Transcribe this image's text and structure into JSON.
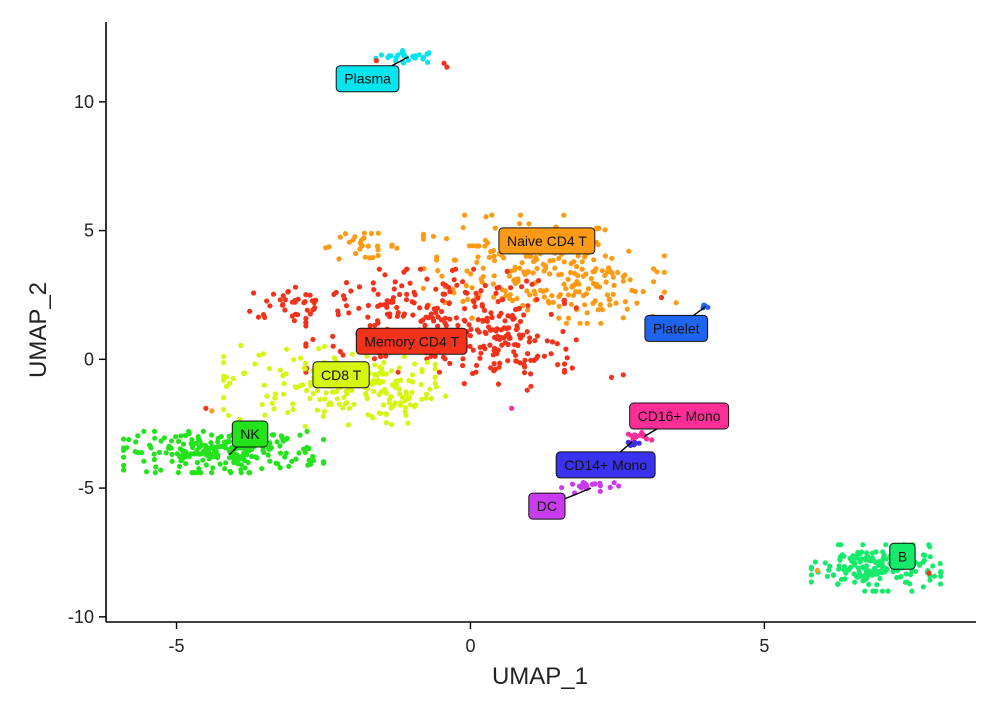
{
  "chart_data": {
    "type": "scatter",
    "title": "",
    "xlabel": "UMAP_1",
    "ylabel": "UMAP_2",
    "xlim": [
      -6.2,
      8.6
    ],
    "ylim": [
      -10.2,
      13.1
    ],
    "x_ticks": [
      -5,
      0,
      5
    ],
    "y_ticks": [
      -10,
      -5,
      0,
      5,
      10
    ],
    "x_tick_labels": [
      "-5",
      "0",
      "5"
    ],
    "y_tick_labels": [
      "-10",
      "-5",
      "0",
      "5",
      "10"
    ],
    "grid": false,
    "legend": "none",
    "clusters": [
      {
        "name": "Plasma",
        "color": "#00e5ee",
        "label_at": [
          -1.75,
          10.9
        ],
        "anchor": [
          -1.05,
          11.75
        ],
        "blobs": [
          {
            "cx": -1.05,
            "cy": 11.75,
            "sx": 0.28,
            "sy": 0.12,
            "n": 26
          }
        ]
      },
      {
        "name": "Naive CD4 T",
        "color": "#ff9a14",
        "label_at": [
          1.3,
          4.6
        ],
        "anchor": [
          1.3,
          4.6
        ],
        "blobs": [
          {
            "cx": 0.9,
            "cy": 3.6,
            "sx": 0.85,
            "sy": 1.0,
            "n": 190
          },
          {
            "cx": 2.2,
            "cy": 2.8,
            "sx": 0.55,
            "sy": 0.7,
            "n": 70
          },
          {
            "cx": -1.9,
            "cy": 4.4,
            "sx": 0.35,
            "sy": 0.25,
            "n": 28
          }
        ]
      },
      {
        "name": "Memory CD4 T",
        "color": "#f2321a",
        "label_at": [
          -1.0,
          0.7
        ],
        "anchor": [
          -1.0,
          0.7
        ],
        "blobs": [
          {
            "cx": -0.6,
            "cy": 1.5,
            "sx": 1.1,
            "sy": 1.0,
            "n": 230
          },
          {
            "cx": 0.6,
            "cy": 0.4,
            "sx": 0.6,
            "sy": 0.8,
            "n": 90
          },
          {
            "cx": -2.9,
            "cy": 2.2,
            "sx": 0.5,
            "sy": 0.35,
            "n": 40
          }
        ]
      },
      {
        "name": "CD8 T",
        "color": "#d6f511",
        "label_at": [
          -2.2,
          -0.6
        ],
        "anchor": [
          -2.2,
          -0.6
        ],
        "blobs": [
          {
            "cx": -2.4,
            "cy": -1.0,
            "sx": 0.9,
            "sy": 0.8,
            "n": 170
          },
          {
            "cx": -1.2,
            "cy": -1.4,
            "sx": 0.45,
            "sy": 0.5,
            "n": 40
          }
        ]
      },
      {
        "name": "NK",
        "color": "#22e31c",
        "label_at": [
          -3.75,
          -2.9
        ],
        "anchor": [
          -4.1,
          -3.7
        ],
        "blobs": [
          {
            "cx": -4.2,
            "cy": -3.6,
            "sx": 0.85,
            "sy": 0.4,
            "n": 230
          }
        ]
      },
      {
        "name": "Platelet",
        "color": "#1f64ee",
        "label_at": [
          3.5,
          1.2
        ],
        "anchor": [
          4.0,
          2.05
        ],
        "blobs": [
          {
            "cx": 4.0,
            "cy": 2.05,
            "sx": 0.05,
            "sy": 0.03,
            "n": 5
          }
        ]
      },
      {
        "name": "CD16+ Mono",
        "color": "#ff2d96",
        "label_at": [
          3.55,
          -2.2
        ],
        "anchor": [
          2.95,
          -3.0
        ],
        "blobs": [
          {
            "cx": 2.95,
            "cy": -3.0,
            "sx": 0.15,
            "sy": 0.08,
            "n": 14
          }
        ]
      },
      {
        "name": "CD14+ Mono",
        "color": "#3a32ee",
        "label_at": [
          2.3,
          -4.1
        ],
        "anchor": [
          2.75,
          -3.2
        ],
        "blobs": [
          {
            "cx": 2.75,
            "cy": -3.25,
            "sx": 0.06,
            "sy": 0.08,
            "n": 6
          }
        ]
      },
      {
        "name": "DC",
        "color": "#c83cee",
        "label_at": [
          1.3,
          -5.7
        ],
        "anchor": [
          2.05,
          -5.0
        ],
        "blobs": [
          {
            "cx": 2.05,
            "cy": -4.95,
            "sx": 0.25,
            "sy": 0.12,
            "n": 22
          }
        ]
      },
      {
        "name": "B",
        "color": "#16ea6b",
        "label_at": [
          7.35,
          -7.65
        ],
        "anchor": [
          7.35,
          -7.65
        ],
        "blobs": [
          {
            "cx": 6.9,
            "cy": -8.1,
            "sx": 0.55,
            "sy": 0.45,
            "n": 180
          }
        ]
      }
    ],
    "stray_points": [
      {
        "x": -1.6,
        "y": 11.6,
        "color": "#f2321a"
      },
      {
        "x": -0.45,
        "y": 11.5,
        "color": "#f2321a"
      },
      {
        "x": -0.4,
        "y": 11.35,
        "color": "#f2321a"
      },
      {
        "x": 0.7,
        "y": -1.9,
        "color": "#ff2d96"
      },
      {
        "x": 3.25,
        "y": 2.4,
        "color": "#f2321a"
      },
      {
        "x": 3.5,
        "y": 2.2,
        "color": "#ff9a14"
      },
      {
        "x": 2.4,
        "y": -0.7,
        "color": "#f2321a"
      },
      {
        "x": 2.6,
        "y": -0.6,
        "color": "#f2321a"
      },
      {
        "x": 7.8,
        "y": -8.3,
        "color": "#f2321a"
      },
      {
        "x": 5.9,
        "y": -8.2,
        "color": "#ff9a14"
      },
      {
        "x": -4.5,
        "y": -1.9,
        "color": "#f2321a"
      },
      {
        "x": -4.4,
        "y": -2.0,
        "color": "#ff9a14"
      }
    ]
  }
}
